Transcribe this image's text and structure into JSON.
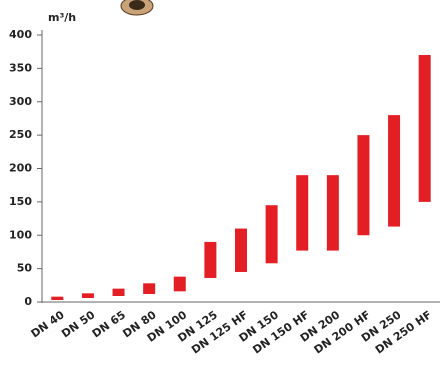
{
  "chart_data": {
    "type": "range-bar",
    "y_label": "m³/h",
    "categories": [
      "DN 40",
      "DN 50",
      "DN 65",
      "DN 80",
      "DN 100",
      "DN 125",
      "DN 125 HF",
      "DN 150",
      "DN 150 HF",
      "DN 200",
      "DN 200 HF",
      "DN 250",
      "DN 250 HF"
    ],
    "low": [
      3,
      6,
      9,
      12,
      16,
      36,
      45,
      58,
      77,
      77,
      100,
      113,
      150
    ],
    "high": [
      8,
      13,
      20,
      28,
      38,
      90,
      110,
      145,
      190,
      190,
      250,
      280,
      370
    ],
    "color": "#e31e24",
    "ylim": [
      0,
      400
    ],
    "yticks": [
      0,
      50,
      100,
      150,
      200,
      250,
      300,
      350,
      400
    ]
  }
}
